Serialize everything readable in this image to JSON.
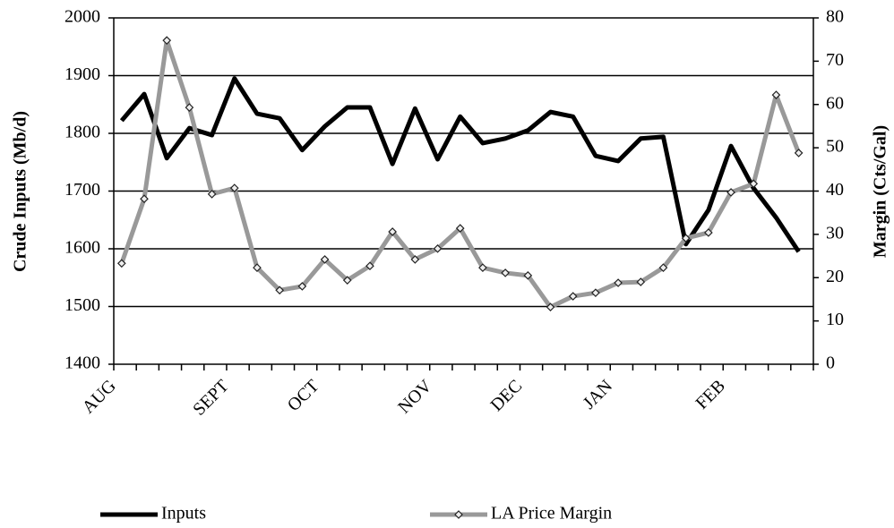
{
  "chart_data": {
    "type": "line",
    "categories": [
      "AUG",
      null,
      null,
      null,
      null,
      "SEPT",
      null,
      null,
      null,
      "OCT",
      null,
      null,
      null,
      null,
      "NOV",
      null,
      null,
      null,
      "DEC",
      null,
      null,
      null,
      "JAN",
      null,
      null,
      null,
      null,
      "FEB",
      null,
      null,
      null
    ],
    "y_label": "Crude Inputs (Mb/d)",
    "y2_label": "Margin (Cts/Gal)",
    "ylim": [
      1400,
      2000
    ],
    "yticks": [
      1400,
      1500,
      1600,
      1700,
      1800,
      1900,
      2000
    ],
    "y2lim": [
      0,
      80
    ],
    "y2ticks": [
      0,
      10,
      20,
      30,
      40,
      50,
      60,
      70,
      80
    ],
    "grid": true,
    "legend": "bottom",
    "series": [
      {
        "name": "Inputs",
        "color": "#000000",
        "values": [
          1822,
          1868,
          1757,
          1809,
          1797,
          1895,
          1834,
          1826,
          1771,
          1812,
          1845,
          1845,
          1747,
          1843,
          1755,
          1829,
          1783,
          1791,
          1805,
          1837,
          1829,
          1761,
          1752,
          1791,
          1794,
          1608,
          1667,
          1778,
          1705,
          1654,
          1595
        ]
      },
      {
        "name": "LA Price Margin",
        "color": "#999999",
        "axis": "y2",
        "values": [
          23.3,
          38.2,
          74.8,
          59.3,
          39.3,
          40.7,
          22.3,
          17.1,
          18.0,
          24.2,
          19.4,
          22.7,
          30.6,
          24.2,
          26.7,
          31.4,
          22.3,
          21.1,
          20.5,
          13.2,
          15.7,
          16.5,
          18.8,
          19.0,
          22.3,
          29.1,
          30.4,
          39.7,
          41.7,
          62.2,
          48.8
        ]
      }
    ]
  }
}
